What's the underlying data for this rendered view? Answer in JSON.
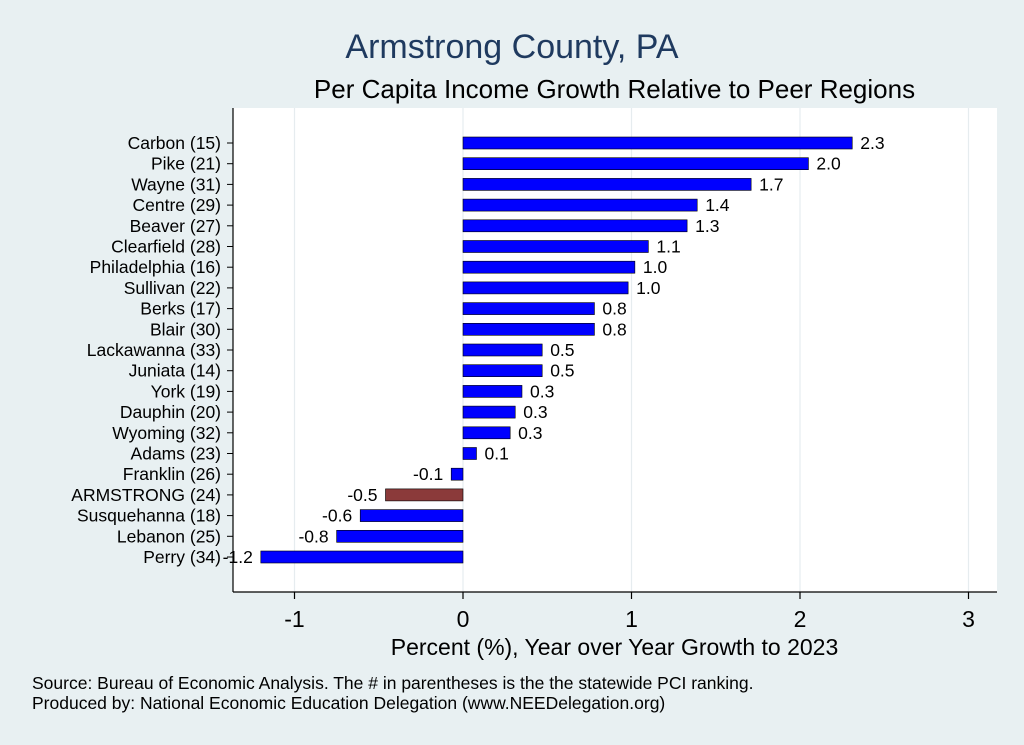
{
  "chart_data": {
    "type": "bar",
    "orientation": "horizontal",
    "title": "Armstrong County, PA",
    "subtitle": "Per Capita Income Growth Relative to Peer Regions",
    "xlabel": "Percent (%), Year over Year Growth to 2023",
    "ylabel": "",
    "xlim": [
      -1.35,
      3.15
    ],
    "xticks": [
      -1,
      0,
      1,
      2,
      3
    ],
    "xtick_labels": [
      "-1",
      "0",
      "1",
      "2",
      "3"
    ],
    "grid": true,
    "highlight": "ARMSTRONG (24)",
    "colors": {
      "bar": "#0000ff",
      "highlight": "#8b3a3a",
      "background": "#e8f0f2",
      "plot_bg": "#ffffff",
      "title": "#1f3a5f"
    },
    "categories": [
      "Carbon (15)",
      "Pike (21)",
      "Wayne (31)",
      "Centre (29)",
      "Beaver (27)",
      "Clearfield (28)",
      "Philadelphia (16)",
      "Sullivan (22)",
      "Berks (17)",
      "Blair (30)",
      "Lackawanna (33)",
      "Juniata (14)",
      "York (19)",
      "Dauphin (20)",
      "Wyoming (32)",
      "Adams (23)",
      "Franklin (26)",
      "ARMSTRONG (24)",
      "Susquehanna (18)",
      "Lebanon (25)",
      "Perry (34)"
    ],
    "values": [
      2.31,
      2.05,
      1.71,
      1.39,
      1.33,
      1.1,
      1.02,
      0.98,
      0.78,
      0.78,
      0.47,
      0.47,
      0.35,
      0.31,
      0.28,
      0.08,
      -0.07,
      -0.46,
      -0.61,
      -0.75,
      -1.2
    ],
    "value_labels": [
      "2.3",
      "2.0",
      "1.7",
      "1.4",
      "1.3",
      "1.1",
      "1.0",
      "1.0",
      "0.8",
      "0.8",
      "0.5",
      "0.5",
      "0.3",
      "0.3",
      "0.3",
      "0.1",
      "-0.1",
      "-0.5",
      "-0.6",
      "-0.8",
      "-1.2"
    ]
  },
  "notes": {
    "source": "Source: Bureau of Economic Analysis. The # in parentheses is the the statewide PCI ranking.",
    "produced_by": "Produced by: National Economic Education Delegation (www.NEEDelegation.org)"
  }
}
